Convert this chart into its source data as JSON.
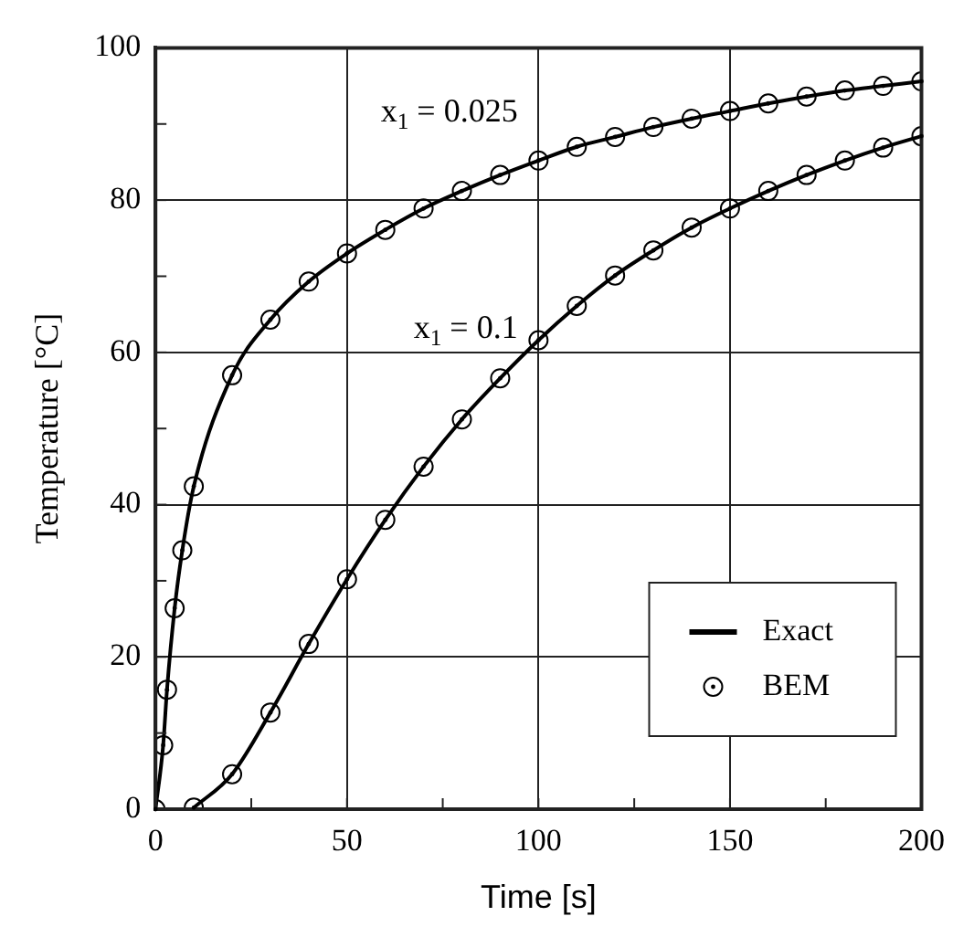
{
  "chart_data": {
    "type": "line",
    "xlabel": "Time [s]",
    "ylabel": "Temperature [°C]",
    "xlim": [
      0,
      200
    ],
    "xticks": [
      0,
      {
        "value": 25,
        "label": null
      },
      50,
      {
        "value": 75,
        "label": null
      },
      100,
      {
        "value": 125,
        "label": null
      },
      150,
      {
        "value": 175,
        "label": null
      },
      200
    ],
    "ylim": [
      0,
      100
    ],
    "yticks": [
      0,
      {
        "value": 10,
        "label": null
      },
      20,
      {
        "value": 30,
        "label": null
      },
      40,
      {
        "value": 50,
        "label": null
      },
      60,
      {
        "value": 70,
        "label": null
      },
      80,
      {
        "value": 90,
        "label": null
      },
      100
    ],
    "grid": true,
    "legend": "bottom right",
    "annotations": [
      "x$_{1}$ = 0.025",
      "x$_{1}$ = 0.1"
    ],
    "series": [
      {
        "name": "Exact",
        "type": "line",
        "color": "#000000",
        "marker": "none",
        "line_style": "solid",
        "x": [
          0,
          2,
          3,
          5,
          7,
          10,
          20,
          30,
          40,
          50,
          60,
          70,
          80,
          90,
          100,
          110,
          120,
          130,
          140,
          150,
          160,
          170,
          180,
          190,
          200
        ],
        "values": [
          0,
          8.4,
          15.7,
          26.4,
          34,
          42.4,
          57,
          64.3,
          69.3,
          73,
          76.1,
          78.9,
          81.2,
          83.3,
          85.2,
          87,
          88.3,
          89.6,
          90.7,
          91.7,
          92.7,
          93.6,
          94.4,
          95,
          95.6
        ]
      },
      {
        "name": "BEM",
        "type": "scatter",
        "color": "#000000",
        "marker": "circle",
        "x": [
          0,
          2,
          3,
          5,
          7,
          10,
          20,
          30,
          40,
          50,
          60,
          70,
          80,
          90,
          100,
          110,
          120,
          130,
          140,
          150,
          160,
          170,
          180,
          190,
          200
        ],
        "values": [
          0,
          8.4,
          15.7,
          26.4,
          34,
          42.4,
          57,
          64.3,
          69.3,
          73,
          76.1,
          78.9,
          81.2,
          83.3,
          85.2,
          87,
          88.3,
          89.6,
          90.7,
          91.7,
          92.7,
          93.6,
          94.4,
          95,
          95.6
        ]
      },
      {
        "type": "line",
        "color": "#000000",
        "marker": "none",
        "line_style": "solid",
        "x": [
          10,
          20,
          30,
          40,
          50,
          60,
          70,
          80,
          90,
          100,
          110,
          120,
          130,
          140,
          150,
          160,
          170,
          180,
          190,
          200
        ],
        "values": [
          0.2,
          4.6,
          12.7,
          21.7,
          30.2,
          38,
          45,
          51.2,
          56.6,
          61.6,
          66.1,
          70.1,
          73.4,
          76.4,
          78.9,
          81.2,
          83.3,
          85.2,
          86.9,
          88.4
        ]
      },
      {
        "type": "scatter",
        "color": "#000000",
        "marker": "circle",
        "x": [
          10,
          20,
          30,
          40,
          50,
          60,
          70,
          80,
          90,
          100,
          110,
          120,
          130,
          140,
          150,
          160,
          170,
          180,
          190,
          200
        ],
        "values": [
          0.2,
          4.6,
          12.7,
          21.7,
          30.2,
          38,
          45,
          51.2,
          56.6,
          61.6,
          66.1,
          70.1,
          73.4,
          76.4,
          78.9,
          81.2,
          83.3,
          85.2,
          86.9,
          88.4
        ]
      }
    ]
  }
}
